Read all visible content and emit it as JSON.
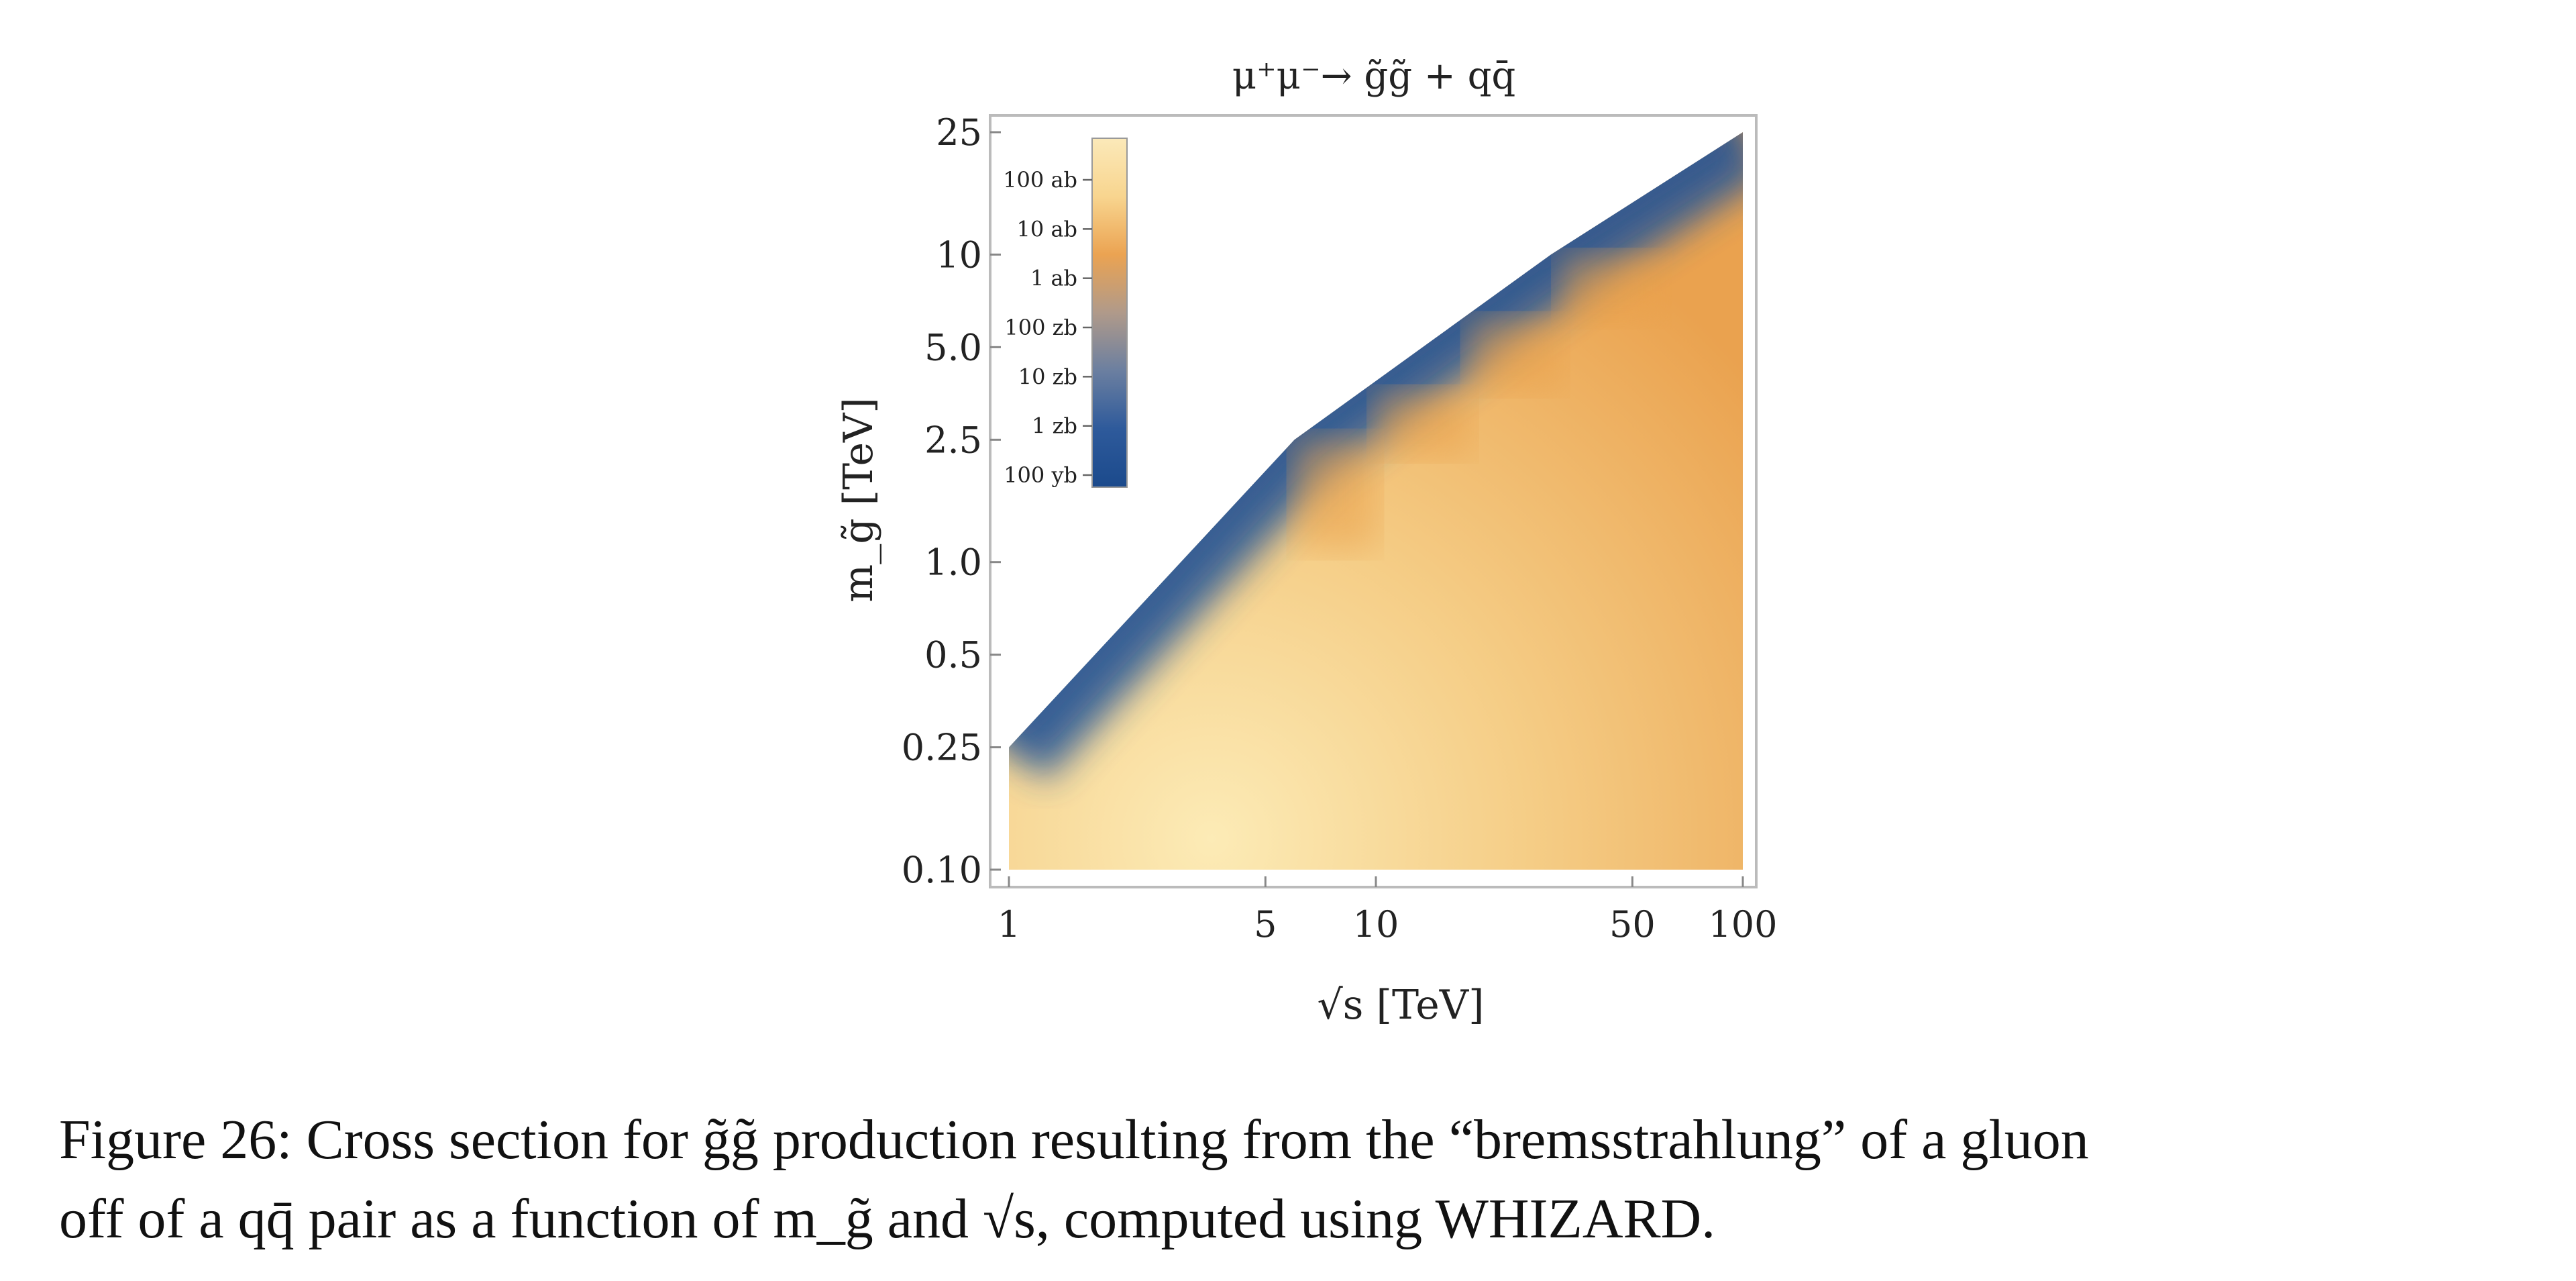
{
  "chart_data": {
    "type": "heatmap",
    "title": "μ⁺μ⁻→ g̃g̃ + qq̄",
    "xlabel": "√s [TeV]",
    "ylabel": "m_g̃ [TeV]",
    "xscale": "log",
    "yscale": "log",
    "xlim": [
      1,
      100
    ],
    "ylim": [
      0.1,
      25
    ],
    "x_ticks": [
      1,
      5,
      10,
      50,
      100
    ],
    "x_tick_labels": [
      "1",
      "5",
      "10",
      "50",
      "100"
    ],
    "y_ticks": [
      0.1,
      0.25,
      0.5,
      1.0,
      2.5,
      5.0,
      10,
      25
    ],
    "y_tick_labels": [
      "0.10",
      "0.25",
      "0.5",
      "1.0",
      "2.5",
      "5.0",
      "10",
      "25"
    ],
    "kinematic_boundary": [
      [
        1,
        0.25
      ],
      [
        6,
        2.5
      ],
      [
        30,
        10
      ],
      [
        100,
        25
      ]
    ],
    "colorbar": {
      "labels": [
        "100 ab",
        "10 ab",
        "1 ab",
        "100 zb",
        "10 zb",
        "1 zb",
        "100 yb"
      ],
      "colors_top_to_bottom": [
        "#fbe9b9",
        "#f8d58f",
        "#eba352",
        "#b09a8a",
        "#6b7fa0",
        "#2e5a9b",
        "#1b4a8c"
      ],
      "placement": "top-left inside plot"
    },
    "grid": false
  },
  "caption": {
    "line1": "Figure 26: Cross section for g̃g̃ production resulting from the “bremsstrahlung” of a gluon",
    "line2": "off of a qq̄ pair as a function of m_g̃ and √s, computed using WHIZARD."
  }
}
